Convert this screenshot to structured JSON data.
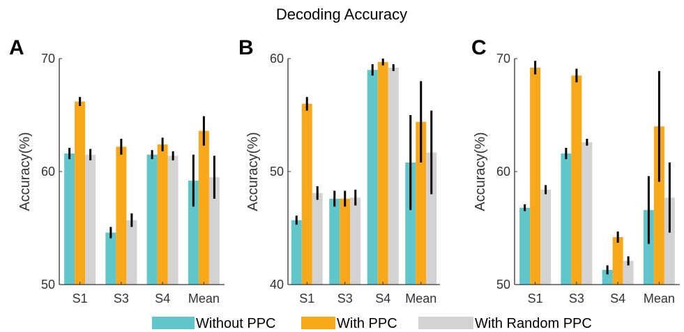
{
  "title": "Decoding Accuracy",
  "colors": {
    "Without PPC": "#5fc7cc",
    "With PPC": "#f9a81b",
    "With Random PPC": "#d3d3d3",
    "error_bar": "#000000",
    "axis": "#333333"
  },
  "legend": [
    "Without PPC",
    "With PPC",
    "With Random PPC"
  ],
  "chart_data": [
    {
      "type": "bar",
      "panel_label": "A",
      "ylabel": "Accuracy(%)",
      "ylim": [
        50,
        70
      ],
      "yticks": [
        50,
        60,
        70
      ],
      "categories": [
        "S1",
        "S3",
        "S4",
        "Mean"
      ],
      "series": [
        {
          "name": "Without PPC",
          "values": [
            61.6,
            54.6,
            61.5,
            59.2
          ],
          "errors": [
            0.5,
            0.5,
            0.4,
            2.3
          ]
        },
        {
          "name": "With PPC",
          "values": [
            66.2,
            62.2,
            62.4,
            63.6
          ],
          "errors": [
            0.4,
            0.7,
            0.6,
            1.3
          ]
        },
        {
          "name": "With Random PPC",
          "values": [
            61.5,
            55.7,
            61.4,
            59.5
          ],
          "errors": [
            0.5,
            0.6,
            0.4,
            1.9
          ]
        }
      ]
    },
    {
      "type": "bar",
      "panel_label": "B",
      "ylabel": "Accuracy(%)",
      "ylim": [
        40,
        60
      ],
      "yticks": [
        40,
        50,
        60
      ],
      "categories": [
        "S1",
        "S3",
        "S4",
        "Mean"
      ],
      "series": [
        {
          "name": "Without PPC",
          "values": [
            45.7,
            47.6,
            59.0,
            50.8
          ],
          "errors": [
            0.4,
            0.7,
            0.5,
            4.2
          ]
        },
        {
          "name": "With PPC",
          "values": [
            56.0,
            47.6,
            59.7,
            54.4
          ],
          "errors": [
            0.6,
            0.7,
            0.3,
            3.6
          ]
        },
        {
          "name": "With Random PPC",
          "values": [
            48.1,
            47.7,
            59.2,
            51.7
          ],
          "errors": [
            0.6,
            0.7,
            0.3,
            3.7
          ]
        }
      ]
    },
    {
      "type": "bar",
      "panel_label": "C",
      "ylabel": "Accuracy(%)",
      "ylim": [
        50,
        70
      ],
      "yticks": [
        50,
        60,
        70
      ],
      "categories": [
        "S1",
        "S3",
        "S4",
        "Mean"
      ],
      "series": [
        {
          "name": "Without PPC",
          "values": [
            56.8,
            61.6,
            51.3,
            56.6
          ],
          "errors": [
            0.3,
            0.5,
            0.4,
            3.0
          ]
        },
        {
          "name": "With PPC",
          "values": [
            69.2,
            68.5,
            54.2,
            64.0
          ],
          "errors": [
            0.6,
            0.6,
            0.5,
            4.9
          ]
        },
        {
          "name": "With Random PPC",
          "values": [
            58.4,
            62.6,
            52.1,
            57.7
          ],
          "errors": [
            0.4,
            0.3,
            0.4,
            3.1
          ]
        }
      ]
    }
  ]
}
